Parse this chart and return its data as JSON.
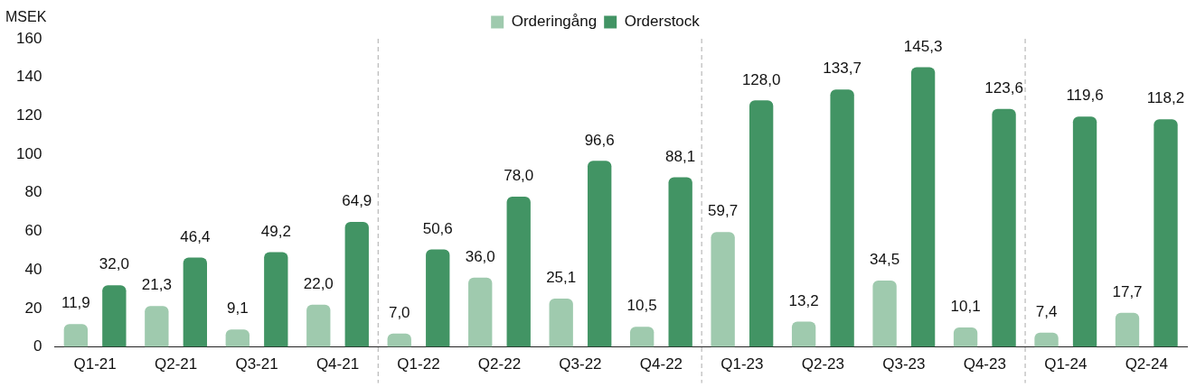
{
  "chart_data": {
    "type": "bar",
    "ylabel": "MSEK",
    "categories": [
      "Q1-21",
      "Q2-21",
      "Q3-21",
      "Q4-21",
      "Q1-22",
      "Q2-22",
      "Q3-22",
      "Q4-22",
      "Q1-23",
      "Q2-23",
      "Q3-23",
      "Q4-23",
      "Q1-24",
      "Q2-24"
    ],
    "series": [
      {
        "name": "Orderingång",
        "color": "#9fcaae",
        "values": [
          11.9,
          21.3,
          9.1,
          22.0,
          7.0,
          36.0,
          25.1,
          10.5,
          59.7,
          13.2,
          34.5,
          10.1,
          7.4,
          17.7
        ],
        "value_labels": [
          "11,9",
          "21,3",
          "9,1",
          "22,0",
          "7,0",
          "36,0",
          "25,1",
          "10,5",
          "59,7",
          "13,2",
          "34,5",
          "10,1",
          "7,4",
          "17,7"
        ]
      },
      {
        "name": "Orderstock",
        "color": "#429464",
        "values": [
          32.0,
          46.4,
          49.2,
          64.9,
          50.6,
          78.0,
          96.6,
          88.1,
          128.0,
          133.7,
          145.3,
          123.6,
          119.6,
          118.2
        ],
        "value_labels": [
          "32,0",
          "46,4",
          "49,2",
          "64,9",
          "50,6",
          "78,0",
          "96,6",
          "88,1",
          "128,0",
          "133,7",
          "145,3",
          "123,6",
          "119,6",
          "118,2"
        ]
      }
    ],
    "ylim": [
      0,
      160
    ],
    "yticks": [
      0,
      20,
      40,
      60,
      80,
      100,
      120,
      140,
      160
    ],
    "grid": false,
    "legend": "top"
  }
}
